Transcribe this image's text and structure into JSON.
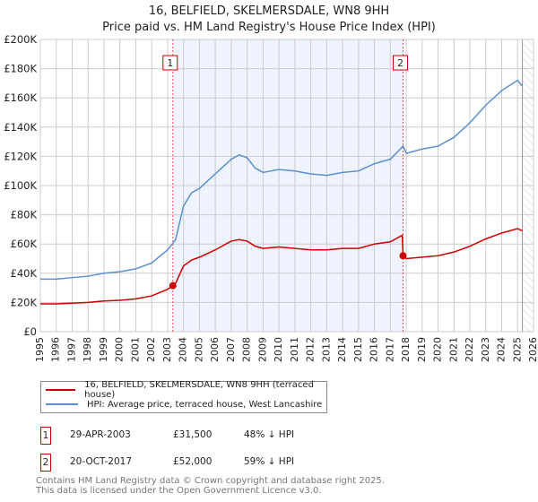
{
  "title": "16, BELFIELD, SKELMERSDALE, WN8 9HH",
  "subtitle": "Price paid vs. HM Land Registry's House Price Index (HPI)",
  "chart_data": {
    "type": "line",
    "xlim": [
      1995,
      2026
    ],
    "ylim": [
      0,
      200000
    ],
    "yticks": [
      {
        "v": 0,
        "label": "£0"
      },
      {
        "v": 20000,
        "label": "£20K"
      },
      {
        "v": 40000,
        "label": "£40K"
      },
      {
        "v": 60000,
        "label": "£60K"
      },
      {
        "v": 80000,
        "label": "£80K"
      },
      {
        "v": 100000,
        "label": "£100K"
      },
      {
        "v": 120000,
        "label": "£120K"
      },
      {
        "v": 140000,
        "label": "£140K"
      },
      {
        "v": 160000,
        "label": "£160K"
      },
      {
        "v": 180000,
        "label": "£180K"
      },
      {
        "v": 200000,
        "label": "£200K"
      }
    ],
    "xticks": [
      1995,
      1996,
      1997,
      1998,
      1999,
      2000,
      2001,
      2002,
      2003,
      2004,
      2005,
      2006,
      2007,
      2008,
      2009,
      2010,
      2011,
      2012,
      2013,
      2014,
      2015,
      2016,
      2017,
      2018,
      2019,
      2020,
      2021,
      2022,
      2023,
      2024,
      2025,
      2026
    ],
    "shaded_range": [
      2003.33,
      2017.8
    ],
    "hatch_from": 2025.3,
    "series": [
      {
        "name": "16, BELFIELD, SKELMERSDALE, WN8 9HH (terraced house)",
        "color": "#cc0000",
        "x": [
          1995,
          1996,
          1997,
          1998,
          1999,
          2000,
          2001,
          2002,
          2003,
          2003.33,
          2003.5,
          2004,
          2004.5,
          2005,
          2006,
          2007,
          2007.5,
          2008,
          2008.5,
          2009,
          2010,
          2011,
          2012,
          2013,
          2014,
          2015,
          2016,
          2017,
          2017.75,
          2017.8,
          2018,
          2019,
          2020,
          2021,
          2022,
          2023,
          2024,
          2025,
          2025.3
        ],
        "y": [
          19000,
          19000,
          19500,
          20000,
          21000,
          21500,
          22500,
          24500,
          29000,
          31500,
          33000,
          45000,
          49000,
          51000,
          56000,
          62000,
          63000,
          62000,
          58500,
          57000,
          58000,
          57000,
          56000,
          56000,
          57000,
          57000,
          60000,
          61500,
          66000,
          52000,
          50000,
          51000,
          52000,
          54500,
          58500,
          63500,
          67500,
          70500,
          69000
        ]
      },
      {
        "name": "HPI: Average price, terraced house, West Lancashire",
        "color": "#5b8fd0",
        "x": [
          1995,
          1996,
          1997,
          1998,
          1999,
          2000,
          2001,
          2002,
          2003,
          2003.33,
          2003.5,
          2004,
          2004.5,
          2005,
          2006,
          2007,
          2007.5,
          2008,
          2008.5,
          2009,
          2010,
          2011,
          2012,
          2013,
          2014,
          2015,
          2016,
          2017,
          2017.8,
          2018,
          2019,
          2020,
          2021,
          2022,
          2023,
          2024,
          2025,
          2025.3
        ],
        "y": [
          36000,
          36000,
          37000,
          38000,
          40000,
          41000,
          43000,
          47000,
          56000,
          60500,
          63000,
          86000,
          95000,
          98000,
          108000,
          118000,
          121000,
          119000,
          112000,
          109000,
          111000,
          110000,
          108000,
          107000,
          109000,
          110000,
          115000,
          118000,
          127000,
          122000,
          125000,
          127000,
          133000,
          143000,
          155000,
          165000,
          172000,
          168000
        ]
      }
    ],
    "annotations": [
      {
        "label": "1",
        "x": 2003.33,
        "y": 31500
      },
      {
        "label": "2",
        "x": 2017.8,
        "y": 52000
      }
    ]
  },
  "legend": [
    {
      "label": "16, BELFIELD, SKELMERSDALE, WN8 9HH (terraced house)",
      "color": "#cc0000"
    },
    {
      "label": "HPI: Average price, terraced house, West Lancashire",
      "color": "#5b8fd0"
    }
  ],
  "transactions": [
    {
      "num": "1",
      "date": "29-APR-2003",
      "price": "£31,500",
      "hpi": "48% ↓ HPI"
    },
    {
      "num": "2",
      "date": "20-OCT-2017",
      "price": "£52,000",
      "hpi": "59% ↓ HPI"
    }
  ],
  "footer": [
    "Contains HM Land Registry data © Crown copyright and database right 2025.",
    "This data is licensed under the Open Government Licence v3.0."
  ]
}
